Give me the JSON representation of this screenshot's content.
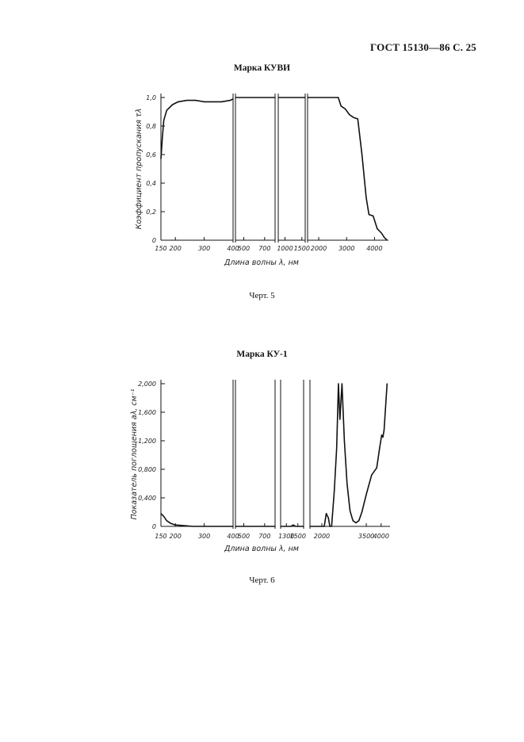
{
  "header": "ГОСТ 15130—86 С. 25",
  "charts": [
    {
      "title": "Марка КУВИ",
      "caption": "Черт. 5",
      "chart_data": {
        "type": "line",
        "title": "Марка КУВИ",
        "xlabel": "Длина волны λ, нм",
        "ylabel": "Коэффициент пропускания τλ",
        "ylim": [
          0,
          1.0
        ],
        "y_ticks": [
          0,
          0.2,
          0.4,
          0.6,
          0.8,
          1.0
        ],
        "y_tick_labels": [
          "0",
          "0,2",
          "0,4",
          "0,6",
          "0,8",
          "1,0"
        ],
        "x_scale": "broken",
        "x_segments": [
          {
            "range": [
              150,
              400
            ],
            "ticks": [
              150,
              200,
              300,
              400
            ],
            "tick_labels": [
              "150",
              "200",
              "300",
              "400"
            ]
          },
          {
            "range": [
              420,
              800
            ],
            "ticks": [
              500,
              700
            ],
            "tick_labels": [
              "500",
              "700"
            ]
          },
          {
            "range": [
              800,
              1600
            ],
            "ticks": [
              1000,
              1500
            ],
            "tick_labels": [
              "1000",
              "1500"
            ]
          },
          {
            "range": [
              1600,
              4500
            ],
            "ticks": [
              2000,
              3000,
              4000
            ],
            "tick_labels": [
              "2000",
              "3000",
              "4000"
            ]
          }
        ],
        "series": [
          {
            "values": [
              [
                1,
                150,
                0.57
              ],
              [
                1,
                155,
                0.72
              ],
              [
                1,
                160,
                0.84
              ],
              [
                1,
                170,
                0.91
              ],
              [
                1,
                190,
                0.95
              ],
              [
                1,
                210,
                0.97
              ],
              [
                1,
                240,
                0.98
              ],
              [
                1,
                270,
                0.98
              ],
              [
                1,
                300,
                0.97
              ],
              [
                1,
                330,
                0.97
              ],
              [
                1,
                360,
                0.97
              ],
              [
                1,
                390,
                0.98
              ],
              [
                1,
                400,
                0.99
              ],
              [
                2,
                420,
                1.0
              ],
              [
                2,
                800,
                1.0
              ],
              [
                3,
                800,
                1.0
              ],
              [
                3,
                1600,
                1.0
              ],
              [
                4,
                1600,
                1.0
              ],
              [
                4,
                2700,
                1.0
              ],
              [
                4,
                2800,
                0.94
              ],
              [
                4,
                2950,
                0.92
              ],
              [
                4,
                3100,
                0.88
              ],
              [
                4,
                3250,
                0.86
              ],
              [
                4,
                3400,
                0.85
              ],
              [
                4,
                3550,
                0.6
              ],
              [
                4,
                3700,
                0.3
              ],
              [
                4,
                3800,
                0.18
              ],
              [
                4,
                3950,
                0.17
              ],
              [
                4,
                4100,
                0.08
              ],
              [
                4,
                4250,
                0.05
              ],
              [
                4,
                4350,
                0.02
              ],
              [
                4,
                4450,
                0.0
              ]
            ]
          }
        ]
      }
    },
    {
      "title": "Марка КУ-1",
      "caption": "Черт. 6",
      "chart_data": {
        "type": "line",
        "title": "Марка КУ-1",
        "xlabel": "Длина волны λ, нм",
        "ylabel": "Показатель поглощения aλ, см⁻¹",
        "ylim": [
          0,
          2.0
        ],
        "y_ticks": [
          0,
          0.4,
          0.8,
          1.2,
          1.6,
          2.0
        ],
        "y_tick_labels": [
          "0",
          "0,400",
          "0,800",
          "1,200",
          "1,600",
          "2,000"
        ],
        "x_scale": "broken",
        "x_segments": [
          {
            "range": [
              150,
              400
            ],
            "ticks": [
              150,
              200,
              300,
              400
            ],
            "tick_labels": [
              "150",
              "200",
              "300",
              "400"
            ]
          },
          {
            "range": [
              420,
              800
            ],
            "ticks": [
              500,
              700
            ],
            "tick_labels": [
              "500",
              "700"
            ]
          },
          {
            "range": [
              1200,
              1600
            ],
            "ticks": [
              1300,
              1500
            ],
            "tick_labels": [
              "1300",
              "1500"
            ]
          },
          {
            "range": [
              1600,
              4300
            ],
            "ticks": [
              2000,
              3500,
              4000
            ],
            "tick_labels": [
              "2000",
              "3500",
              "4000"
            ]
          }
        ],
        "series": [
          {
            "values": [
              [
                1,
                150,
                0.18
              ],
              [
                1,
                160,
                0.14
              ],
              [
                1,
                170,
                0.08
              ],
              [
                1,
                185,
                0.04
              ],
              [
                1,
                200,
                0.02
              ],
              [
                1,
                230,
                0.01
              ],
              [
                1,
                260,
                0.0
              ],
              [
                1,
                300,
                0.0
              ],
              [
                1,
                400,
                0.0
              ],
              [
                2,
                420,
                0.0
              ],
              [
                2,
                800,
                0.0
              ],
              [
                3,
                1200,
                0.0
              ],
              [
                3,
                1380,
                0.0
              ],
              [
                3,
                1420,
                0.02
              ],
              [
                3,
                1460,
                0.0
              ],
              [
                3,
                1600,
                0.0
              ],
              [
                4,
                1600,
                0.0
              ],
              [
                4,
                2080,
                0.0
              ],
              [
                4,
                2150,
                0.18
              ],
              [
                4,
                2220,
                0.12
              ],
              [
                4,
                2270,
                0.0
              ],
              [
                4,
                2330,
                0.0
              ],
              [
                4,
                2420,
                0.5
              ],
              [
                4,
                2500,
                1.1
              ],
              [
                4,
                2560,
                2.0
              ],
              [
                4,
                2610,
                1.5
              ],
              [
                4,
                2680,
                2.0
              ],
              [
                4,
                2760,
                1.2
              ],
              [
                4,
                2850,
                0.6
              ],
              [
                4,
                2950,
                0.22
              ],
              [
                4,
                3050,
                0.08
              ],
              [
                4,
                3150,
                0.05
              ],
              [
                4,
                3250,
                0.08
              ],
              [
                4,
                3350,
                0.2
              ],
              [
                4,
                3500,
                0.45
              ],
              [
                4,
                3680,
                0.72
              ],
              [
                4,
                3850,
                0.82
              ],
              [
                4,
                3950,
                1.1
              ],
              [
                4,
                4020,
                1.28
              ],
              [
                4,
                4060,
                1.25
              ],
              [
                4,
                4100,
                1.35
              ],
              [
                4,
                4200,
                2.0
              ]
            ]
          }
        ]
      }
    }
  ]
}
